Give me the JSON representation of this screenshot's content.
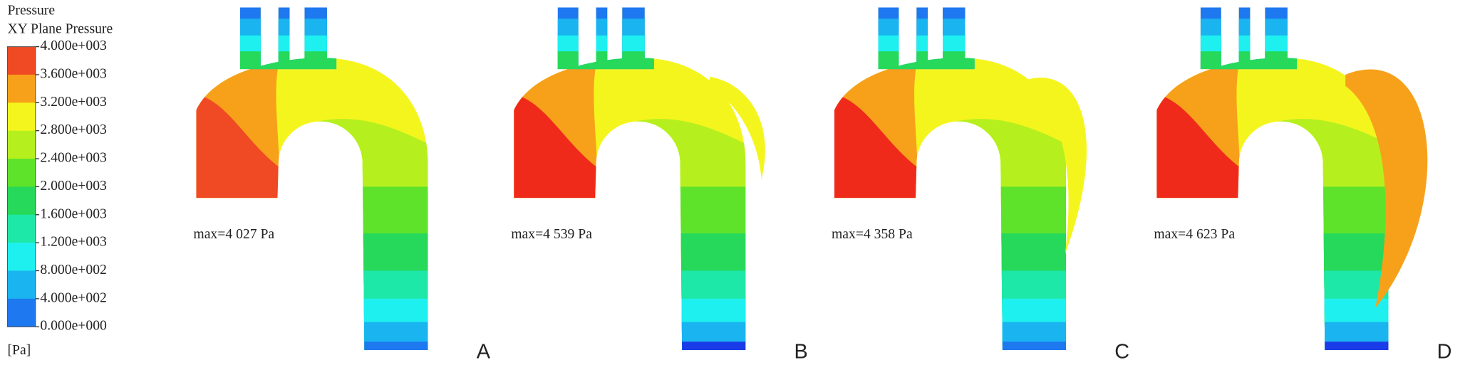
{
  "legend": {
    "title": "Pressure",
    "subtitle": "XY Plane Pressure",
    "ticks": [
      "4.000e+003",
      "3.600e+003",
      "3.200e+003",
      "2.800e+003",
      "2.400e+003",
      "2.000e+003",
      "1.600e+003",
      "1.200e+003",
      "8.000e+002",
      "4.000e+002",
      "0.000e+000"
    ],
    "unit": "[Pa]"
  },
  "panels": [
    {
      "label": "A",
      "max_text": "max=4 027 Pa"
    },
    {
      "label": "B",
      "max_text": "max=4 539 Pa"
    },
    {
      "label": "C",
      "max_text": "max=4 358 Pa"
    },
    {
      "label": "D",
      "max_text": "max=4 623 Pa"
    }
  ]
}
